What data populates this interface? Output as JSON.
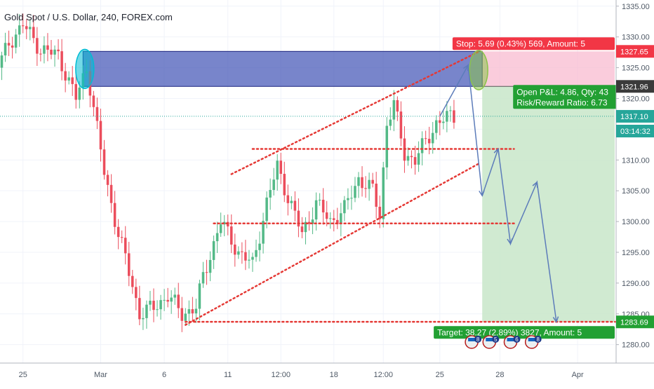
{
  "header": {
    "title": "Gold Spot / U.S. Dollar, 240, FOREX.com"
  },
  "chart_data": {
    "type": "candlestick",
    "title": "Gold Spot / U.S. Dollar, 240, FOREX.com",
    "symbol": "XAUUSD",
    "interval": "240",
    "source": "FOREX.com",
    "ylim": [
      1277,
      1336
    ],
    "y_ticks": [
      1280,
      1285,
      1290,
      1295,
      1300,
      1305,
      1310,
      1315,
      1320,
      1325,
      1330,
      1335
    ],
    "y_tick_labels": [
      "1280.00",
      "1285.00",
      "1290.00",
      "1295.00",
      "1300.00",
      "1305.00",
      "1310.00",
      "1315.00",
      "1320.00",
      "1325.00",
      "1330.00",
      "1335.00"
    ],
    "x_ticks": [
      {
        "label": "25",
        "bar": 6
      },
      {
        "label": "Mar",
        "bar": 28
      },
      {
        "label": "6",
        "bar": 46
      },
      {
        "label": "11",
        "bar": 64
      },
      {
        "label": "12:00",
        "bar": 79
      },
      {
        "label": "18",
        "bar": 94
      },
      {
        "label": "12:00",
        "bar": 108
      },
      {
        "label": "25",
        "bar": 124
      },
      {
        "label": "28",
        "bar": 141
      },
      {
        "label": "Apr",
        "bar": 163
      }
    ],
    "bar_count": 174,
    "colors": {
      "up": "#53b987",
      "down": "#eb4d5c",
      "grid": "#f0f3fa",
      "axis_text": "#4f5966"
    },
    "price_labels": [
      {
        "text": "1327.65",
        "value": 1327.65,
        "color": "#f23645"
      },
      {
        "text": "1321.96",
        "value": 1321.96,
        "color": "#3a3a3a"
      },
      {
        "text": "1317.10",
        "value": 1317.1,
        "color": "#26a69a"
      },
      {
        "text": "03:14:32",
        "value": 1314.7,
        "color": "#26a69a"
      },
      {
        "text": "1283.69",
        "value": 1283.69,
        "color": "#22a033"
      }
    ],
    "current_price": 1317.1,
    "position": {
      "entry": 1321.96,
      "stop": 1327.65,
      "target": 1283.69,
      "start_bar": 136,
      "end_bar": 174,
      "stop_label": "Stop: 5.69 (0.43%) 569, Amount: 5",
      "pnl_label_1": "Open P&L: 4.86, Qty: 43",
      "pnl_label_2": "Risk/Reward Ratio: 6.73",
      "target_label": "Target: 38.27 (2.89%) 3827, Amount: 5"
    },
    "zone": {
      "top": 1327.65,
      "bottom": 1321.96,
      "start_bar": 23,
      "end_bar": 136,
      "color": "#3f51b5"
    },
    "ellipses": [
      {
        "bar": 23.5,
        "price": 1324.8,
        "color": "#00bcd4"
      },
      {
        "bar": 135,
        "price": 1324.6,
        "color": "#8bc34a"
      }
    ],
    "dotted_lines": [
      {
        "from": [
          65,
          1307.7
        ],
        "to": [
          135,
          1327.6
        ],
        "color": "#e53935"
      },
      {
        "from": [
          52,
          1283.2
        ],
        "to": [
          135,
          1309.4
        ],
        "color": "#e53935"
      },
      {
        "from": [
          71,
          1311.8
        ],
        "to": [
          145,
          1311.8
        ],
        "color": "#e53935"
      },
      {
        "from": [
          60,
          1299.7
        ],
        "to": [
          145,
          1299.7
        ],
        "color": "#e53935"
      },
      {
        "from": [
          52,
          1283.7
        ],
        "to": [
          174,
          1283.7
        ],
        "color": "#e53935"
      }
    ],
    "forecast_path": [
      [
        124,
        1317.1
      ],
      [
        132,
        1325.4
      ],
      [
        136,
        1304.2
      ],
      [
        140.5,
        1311.8
      ],
      [
        144,
        1296.4
      ],
      [
        151.5,
        1306.4
      ],
      [
        157,
        1283.7
      ]
    ],
    "event_badges": [
      "8",
      "5",
      "6",
      "8"
    ],
    "event_badge_bars": [
      133,
      138,
      144,
      150
    ]
  }
}
